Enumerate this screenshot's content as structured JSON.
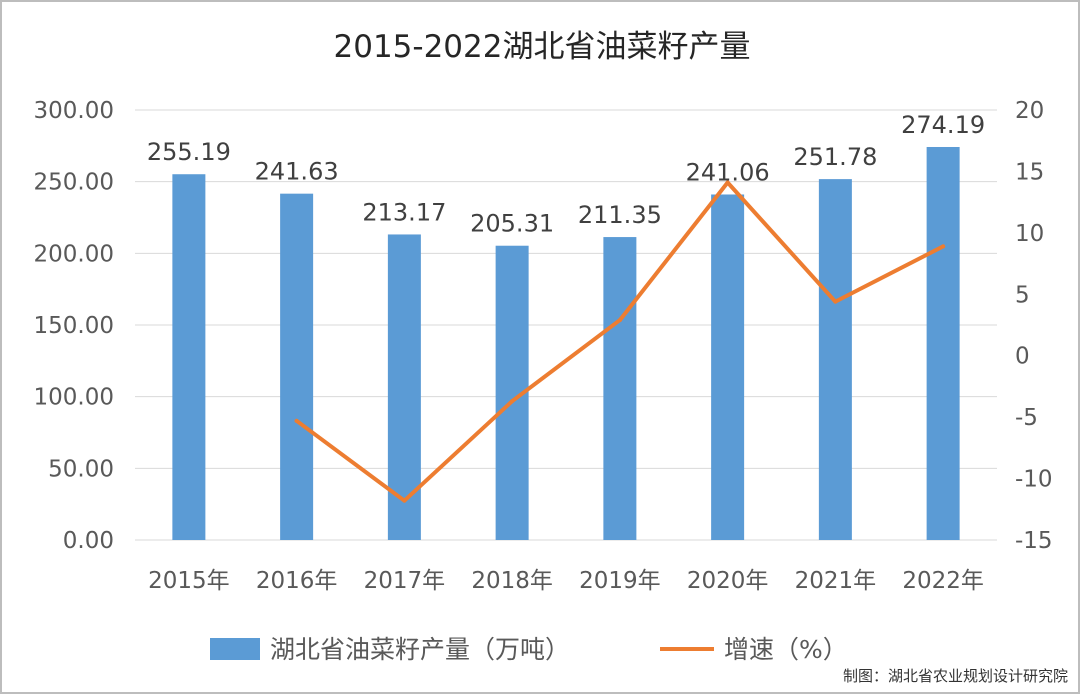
{
  "chart_data": {
    "type": "bar",
    "title": "2015-2022湖北省油菜籽产量",
    "categories": [
      "2015年",
      "2016年",
      "2017年",
      "2018年",
      "2019年",
      "2020年",
      "2021年",
      "2022年"
    ],
    "series": [
      {
        "name": "湖北省油菜籽产量（万吨）",
        "type": "bar",
        "axis": "left",
        "values": [
          255.19,
          241.63,
          213.17,
          205.31,
          211.35,
          241.06,
          251.78,
          274.19
        ],
        "data_labels": [
          "255.19",
          "241.63",
          "213.17",
          "205.31",
          "211.35",
          "241.06",
          "251.78",
          "274.19"
        ],
        "color": "#5b9bd5"
      },
      {
        "name": "增速（%）",
        "type": "line",
        "axis": "right",
        "values": [
          null,
          -5.3,
          -11.8,
          -3.7,
          2.9,
          14.1,
          4.4,
          8.9
        ],
        "color": "#ed7d31"
      }
    ],
    "y_left": {
      "range": [
        0,
        300
      ],
      "ticks": [
        0,
        50,
        100,
        150,
        200,
        250,
        300
      ],
      "tick_labels": [
        "0.00",
        "50.00",
        "100.00",
        "150.00",
        "200.00",
        "250.00",
        "300.00"
      ]
    },
    "y_right": {
      "range": [
        -15,
        20
      ],
      "ticks": [
        -15,
        -10,
        -5,
        0,
        5,
        10,
        15,
        20
      ],
      "tick_labels": [
        "-15",
        "-10",
        "-5",
        "0",
        "5",
        "10",
        "15",
        "20"
      ]
    },
    "grid": true,
    "legend_position": "bottom"
  },
  "source": "制图：湖北省农业规划设计研究院",
  "colors": {
    "axis_text": "#595959",
    "grid": "#d9d9d9",
    "border": "#bdbdbd"
  }
}
